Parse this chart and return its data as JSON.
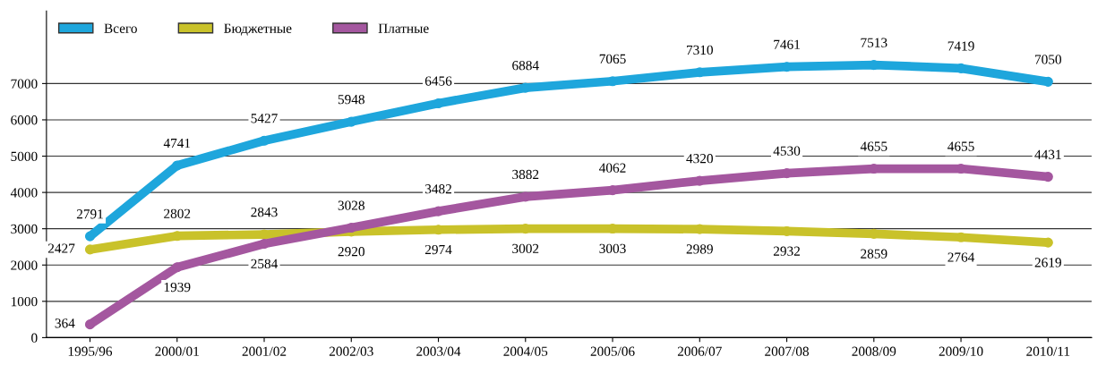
{
  "chart_data": {
    "type": "line",
    "categories": [
      "1995/96",
      "2000/01",
      "2001/02",
      "2002/03",
      "2003/04",
      "2004/05",
      "2005/06",
      "2006/07",
      "2007/08",
      "2008/09",
      "2009/10",
      "2010/11"
    ],
    "series": [
      {
        "name": "Всего",
        "color": "#1ea6dc",
        "values": [
          2791,
          4741,
          5427,
          5948,
          6456,
          6884,
          7065,
          7310,
          7461,
          7513,
          7419,
          7050
        ]
      },
      {
        "name": "Бюджетные",
        "color": "#c9c22a",
        "values": [
          2427,
          2802,
          2843,
          2920,
          2974,
          3002,
          3003,
          2989,
          2932,
          2859,
          2764,
          2619
        ]
      },
      {
        "name": "Платные",
        "color": "#a4579f",
        "values": [
          364,
          1939,
          2584,
          3028,
          3482,
          3882,
          4062,
          4320,
          4530,
          4655,
          4655,
          4431
        ]
      }
    ],
    "ylim": [
      0,
      9000
    ],
    "yticks": [
      0,
      1000,
      2000,
      3000,
      4000,
      5000,
      6000,
      7000
    ],
    "grid": "y",
    "legend": "top left",
    "marker": "circle",
    "line_style": "solid",
    "data_labels": true
  }
}
